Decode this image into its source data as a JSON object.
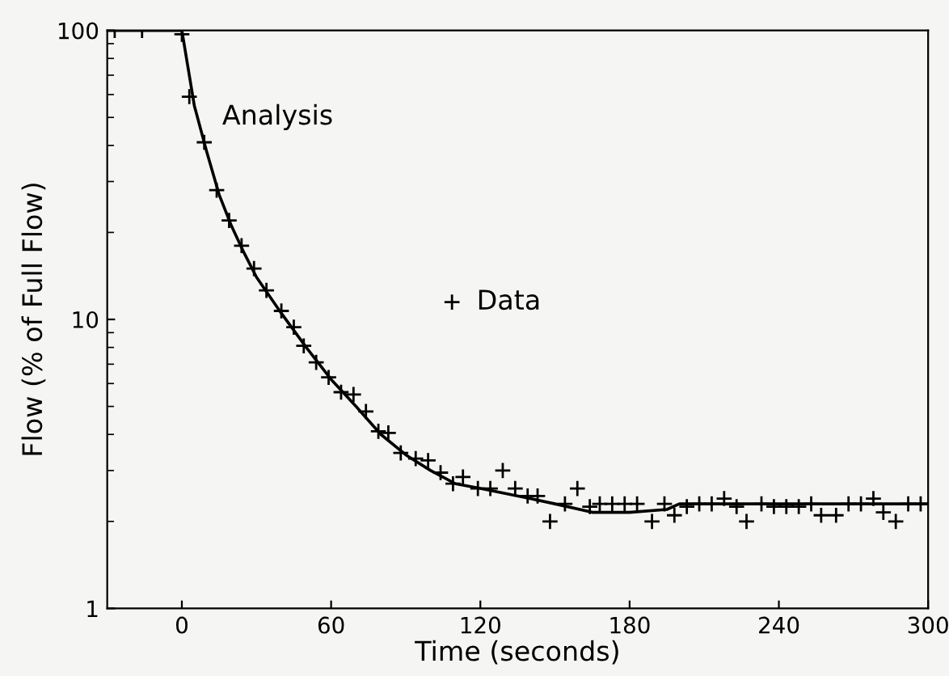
{
  "chart_data": {
    "type": "line",
    "xlabel": "Time (seconds)",
    "ylabel": "Flow (% of Full Flow)",
    "log": "y",
    "xlim": [
      -30,
      300
    ],
    "xticks": [
      0,
      60,
      120,
      180,
      240,
      300
    ],
    "ylim": [
      1,
      100
    ],
    "yticks": [
      1,
      10,
      100
    ],
    "grid": false,
    "series": [
      {
        "name": "Data",
        "type": "scatter",
        "marker": "cross",
        "color": "#000000",
        "x": [
          -27,
          -16,
          0,
          3,
          9,
          14,
          19,
          24,
          29,
          34,
          40,
          45,
          49,
          54,
          59,
          64,
          69,
          74,
          79,
          83,
          88,
          94,
          99,
          104,
          109,
          113,
          119,
          124,
          129,
          134,
          139,
          143,
          148,
          154,
          159,
          164,
          168,
          173,
          178,
          183,
          189,
          194,
          198,
          203,
          208,
          213,
          218,
          223,
          227,
          233,
          238,
          243,
          248,
          253,
          257,
          263,
          268,
          273,
          278,
          282,
          287,
          292,
          297
        ],
        "values": [
          100,
          100,
          97,
          59,
          41,
          28,
          22,
          18,
          15,
          12.6,
          10.7,
          9.4,
          8.1,
          7.1,
          6.3,
          5.6,
          5.5,
          4.8,
          4.1,
          4.05,
          3.45,
          3.3,
          3.25,
          2.95,
          2.7,
          2.85,
          2.6,
          2.6,
          3.0,
          2.6,
          2.45,
          2.45,
          2.0,
          2.3,
          2.6,
          2.25,
          2.3,
          2.3,
          2.3,
          2.3,
          2.0,
          2.3,
          2.1,
          2.25,
          2.3,
          2.3,
          2.4,
          2.25,
          2.0,
          2.3,
          2.25,
          2.25,
          2.25,
          2.3,
          2.1,
          2.1,
          2.3,
          2.3,
          2.4,
          2.15,
          2.0,
          2.3,
          2.3
        ]
      },
      {
        "name": "Analysis",
        "line_style": "solid",
        "color": "#000000",
        "x": [
          -30,
          0,
          5,
          10,
          15,
          20,
          25,
          30,
          40,
          50,
          60,
          70,
          80,
          90,
          100,
          110,
          120,
          130,
          140,
          150,
          165,
          180,
          195,
          200,
          300
        ],
        "values": [
          100,
          100,
          55,
          38,
          27,
          21,
          17,
          14,
          10.5,
          8.0,
          6.2,
          5.0,
          4.0,
          3.4,
          3.0,
          2.7,
          2.6,
          2.5,
          2.4,
          2.3,
          2.15,
          2.15,
          2.2,
          2.3,
          2.3
        ]
      }
    ]
  }
}
